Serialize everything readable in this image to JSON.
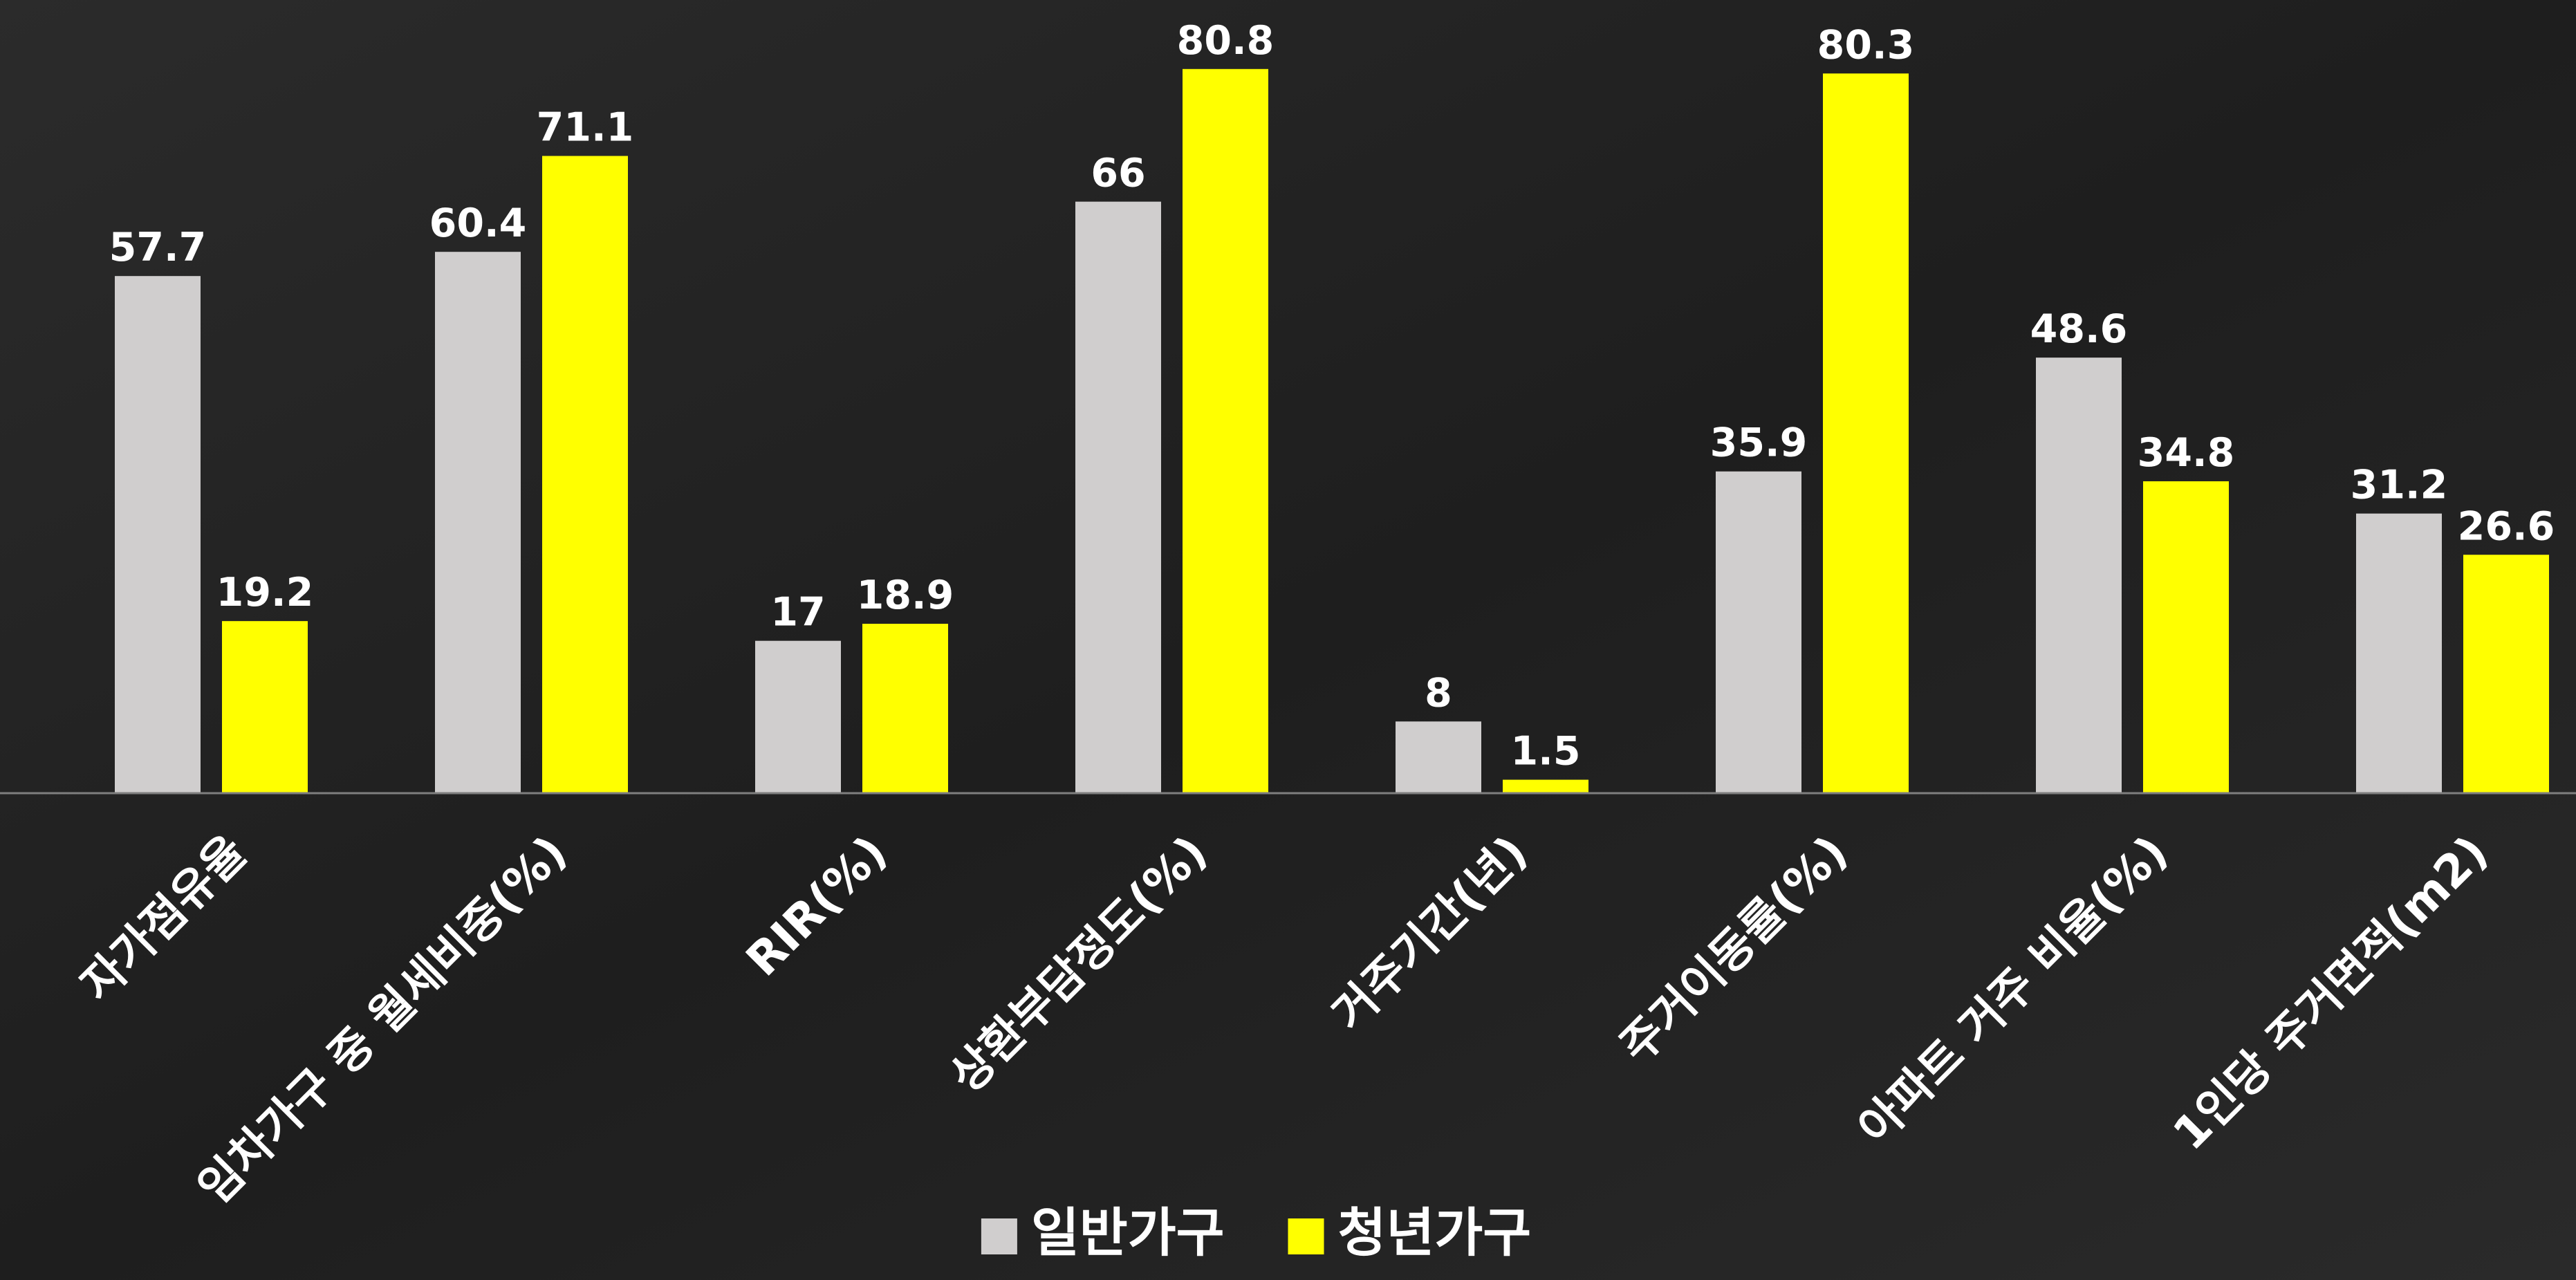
{
  "chart_data": {
    "type": "bar",
    "categories": [
      "자가점유율",
      "임차가구 중 월세비중(%)",
      "RIR(%)",
      "상환부담정도(%)",
      "거주기간(년)",
      "주거이동률(%)",
      "아파트 거주 비율(%)",
      "1인당 주거면적(m2)"
    ],
    "series": [
      {
        "name": "일반가구",
        "color": "#d0cece",
        "values": [
          57.7,
          60.4,
          17,
          66,
          8,
          35.9,
          48.6,
          31.2
        ]
      },
      {
        "name": "청년가구",
        "color": "#ffff00",
        "values": [
          19.2,
          71.1,
          18.9,
          80.8,
          1.5,
          80.3,
          34.8,
          26.6
        ]
      }
    ],
    "ylim": [
      0,
      88.5
    ],
    "legend": "bottom"
  }
}
